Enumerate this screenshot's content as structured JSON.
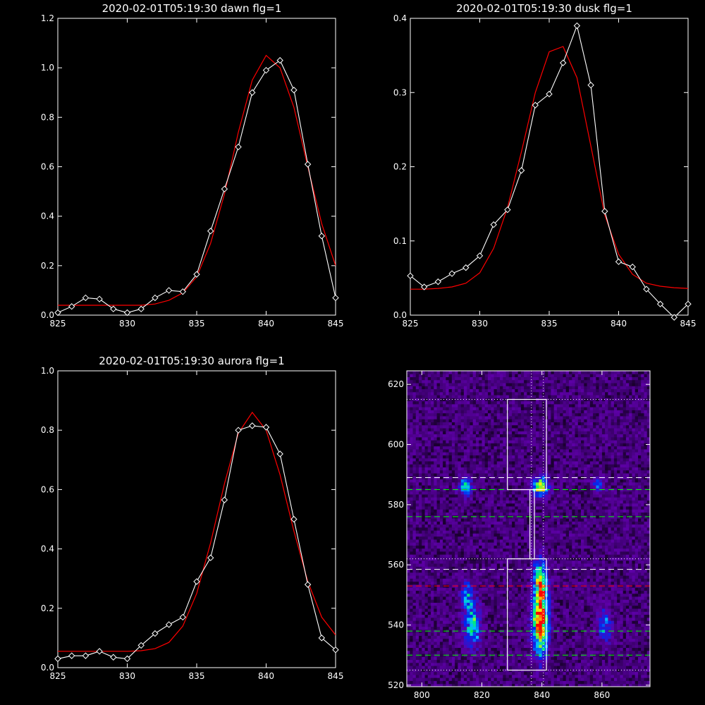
{
  "colors": {
    "background": "#000000",
    "axes": "#ffffff",
    "observed": "#ffffff",
    "fit": "#ff0000",
    "green_line": "#00ff00",
    "red_line": "#ff0000",
    "white_line": "#ffffff"
  },
  "chart_data": [
    {
      "type": "line",
      "title": "2020-02-01T05:19:30 dawn flg=1",
      "xlabel": "",
      "ylabel": "",
      "xlim": [
        825,
        845
      ],
      "ylim": [
        0,
        1.2
      ],
      "xticks": [
        "825",
        "830",
        "835",
        "840",
        "845"
      ],
      "yticks": [
        "0.0",
        "0.2",
        "0.4",
        "0.6",
        "0.8",
        "1.0",
        "1.2"
      ],
      "series": [
        {
          "kind": "observed",
          "marker": "diamond",
          "x": [
            825,
            826,
            827,
            828,
            829,
            830,
            831,
            832,
            833,
            834,
            835,
            836,
            837,
            838,
            839,
            840,
            841,
            842,
            843,
            844,
            845
          ],
          "y": [
            0.01,
            0.035,
            0.07,
            0.065,
            0.025,
            0.01,
            0.025,
            0.07,
            0.1,
            0.095,
            0.165,
            0.34,
            0.51,
            0.68,
            0.9,
            0.99,
            1.03,
            0.91,
            0.61,
            0.32,
            0.07
          ]
        },
        {
          "kind": "fit",
          "x": [
            825,
            826,
            827,
            828,
            829,
            830,
            831,
            832,
            833,
            834,
            835,
            836,
            837,
            838,
            839,
            840,
            841,
            842,
            843,
            844,
            845
          ],
          "y": [
            0.04,
            0.04,
            0.04,
            0.04,
            0.04,
            0.04,
            0.04,
            0.045,
            0.06,
            0.09,
            0.155,
            0.29,
            0.49,
            0.74,
            0.95,
            1.05,
            1.0,
            0.84,
            0.6,
            0.37,
            0.2
          ]
        }
      ]
    },
    {
      "type": "line",
      "title": "2020-02-01T05:19:30 dusk flg=1",
      "xlabel": "",
      "ylabel": "",
      "xlim": [
        825,
        845
      ],
      "ylim": [
        0,
        0.4
      ],
      "xticks": [
        "825",
        "830",
        "835",
        "840",
        "845"
      ],
      "yticks": [
        "0.0",
        "0.1",
        "0.2",
        "0.3",
        "0.4"
      ],
      "series": [
        {
          "kind": "observed",
          "marker": "diamond",
          "x": [
            825,
            826,
            827,
            828,
            829,
            830,
            831,
            832,
            833,
            834,
            835,
            836,
            837,
            838,
            839,
            840,
            841,
            842,
            843,
            844,
            845
          ],
          "y": [
            0.053,
            0.038,
            0.045,
            0.056,
            0.064,
            0.08,
            0.122,
            0.142,
            0.195,
            0.283,
            0.298,
            0.34,
            0.39,
            0.31,
            0.14,
            0.072,
            0.065,
            0.035,
            0.015,
            -0.003,
            0.015
          ]
        },
        {
          "kind": "fit",
          "x": [
            825,
            826,
            827,
            828,
            829,
            830,
            831,
            832,
            833,
            834,
            835,
            836,
            837,
            838,
            839,
            840,
            841,
            842,
            843,
            844,
            845
          ],
          "y": [
            0.035,
            0.035,
            0.036,
            0.038,
            0.043,
            0.057,
            0.09,
            0.145,
            0.22,
            0.3,
            0.355,
            0.362,
            0.32,
            0.228,
            0.135,
            0.082,
            0.055,
            0.043,
            0.039,
            0.037,
            0.036
          ]
        }
      ]
    },
    {
      "type": "line",
      "title": "2020-02-01T05:19:30 aurora flg=1",
      "xlabel": "",
      "ylabel": "",
      "xlim": [
        825,
        845
      ],
      "ylim": [
        0,
        1.0
      ],
      "xticks": [
        "825",
        "830",
        "835",
        "840",
        "845"
      ],
      "yticks": [
        "0.0",
        "0.2",
        "0.4",
        "0.6",
        "0.8",
        "1.0"
      ],
      "series": [
        {
          "kind": "observed",
          "marker": "diamond",
          "x": [
            825,
            826,
            827,
            828,
            829,
            830,
            831,
            832,
            833,
            834,
            835,
            836,
            837,
            838,
            839,
            840,
            841,
            842,
            843,
            844,
            845
          ],
          "y": [
            0.03,
            0.04,
            0.04,
            0.055,
            0.035,
            0.03,
            0.075,
            0.115,
            0.145,
            0.17,
            0.29,
            0.37,
            0.565,
            0.8,
            0.815,
            0.81,
            0.72,
            0.5,
            0.28,
            0.1,
            0.06
          ]
        },
        {
          "kind": "fit",
          "x": [
            825,
            826,
            827,
            828,
            829,
            830,
            831,
            832,
            833,
            834,
            835,
            836,
            837,
            838,
            839,
            840,
            841,
            842,
            843,
            844,
            845
          ],
          "y": [
            0.055,
            0.055,
            0.055,
            0.055,
            0.055,
            0.055,
            0.057,
            0.064,
            0.085,
            0.14,
            0.25,
            0.42,
            0.62,
            0.79,
            0.86,
            0.8,
            0.65,
            0.46,
            0.29,
            0.17,
            0.11
          ]
        }
      ]
    },
    {
      "type": "heatmap",
      "title": "",
      "xlabel": "",
      "ylabel": "",
      "xlim": [
        795,
        876
      ],
      "ylim": [
        519.5,
        624.5
      ],
      "xticks": [
        "800",
        "820",
        "840",
        "860"
      ],
      "yticks": [
        "520",
        "540",
        "560",
        "580",
        "600",
        "620"
      ],
      "colormap": "rainbow",
      "blobs": [
        {
          "x": 839.5,
          "y": 586,
          "sx": 1.8,
          "sy": 2.2,
          "peak": 0.7
        },
        {
          "x": 814.5,
          "y": 586,
          "sx": 1.4,
          "sy": 2.0,
          "peak": 0.5
        },
        {
          "x": 859,
          "y": 586.5,
          "sx": 1.4,
          "sy": 1.8,
          "peak": 0.35
        },
        {
          "x": 839.5,
          "y": 540,
          "sx": 1.8,
          "sy": 7.0,
          "peak": 0.85
        },
        {
          "x": 839.5,
          "y": 554,
          "sx": 1.6,
          "sy": 5.5,
          "peak": 0.65
        },
        {
          "x": 817,
          "y": 540,
          "sx": 1.8,
          "sy": 5.0,
          "peak": 0.5
        },
        {
          "x": 815,
          "y": 550,
          "sx": 1.4,
          "sy": 3.5,
          "peak": 0.35
        },
        {
          "x": 861,
          "y": 540,
          "sx": 1.5,
          "sy": 4.0,
          "peak": 0.35
        }
      ],
      "boxes": [
        {
          "x": [
            828.5,
            841.5
          ],
          "y": [
            585,
            615
          ]
        },
        {
          "x": [
            828.5,
            841.5
          ],
          "y": [
            525,
            562
          ]
        },
        {
          "x": [
            836,
            837.5
          ],
          "y": [
            562,
            585
          ]
        }
      ],
      "vlines_dotted": [
        836.5,
        840.5
      ],
      "hlines": [
        {
          "y": 615,
          "color": "#ffffff",
          "style": "dotted"
        },
        {
          "y": 589,
          "color": "#ffffff",
          "style": "dashed"
        },
        {
          "y": 585,
          "color": "#00ff00",
          "style": "dashed"
        },
        {
          "y": 576,
          "color": "#00ff00",
          "style": "dashed"
        },
        {
          "y": 562,
          "color": "#ffffff",
          "style": "dotted"
        },
        {
          "y": 558.5,
          "color": "#ffffff",
          "style": "dashed"
        },
        {
          "y": 553,
          "color": "#ff0000",
          "style": "dashed"
        },
        {
          "y": 538,
          "color": "#00ff00",
          "style": "dashed"
        },
        {
          "y": 530,
          "color": "#00ff00",
          "style": "dashed"
        },
        {
          "y": 525,
          "color": "#ffffff",
          "style": "dotted"
        }
      ]
    }
  ]
}
